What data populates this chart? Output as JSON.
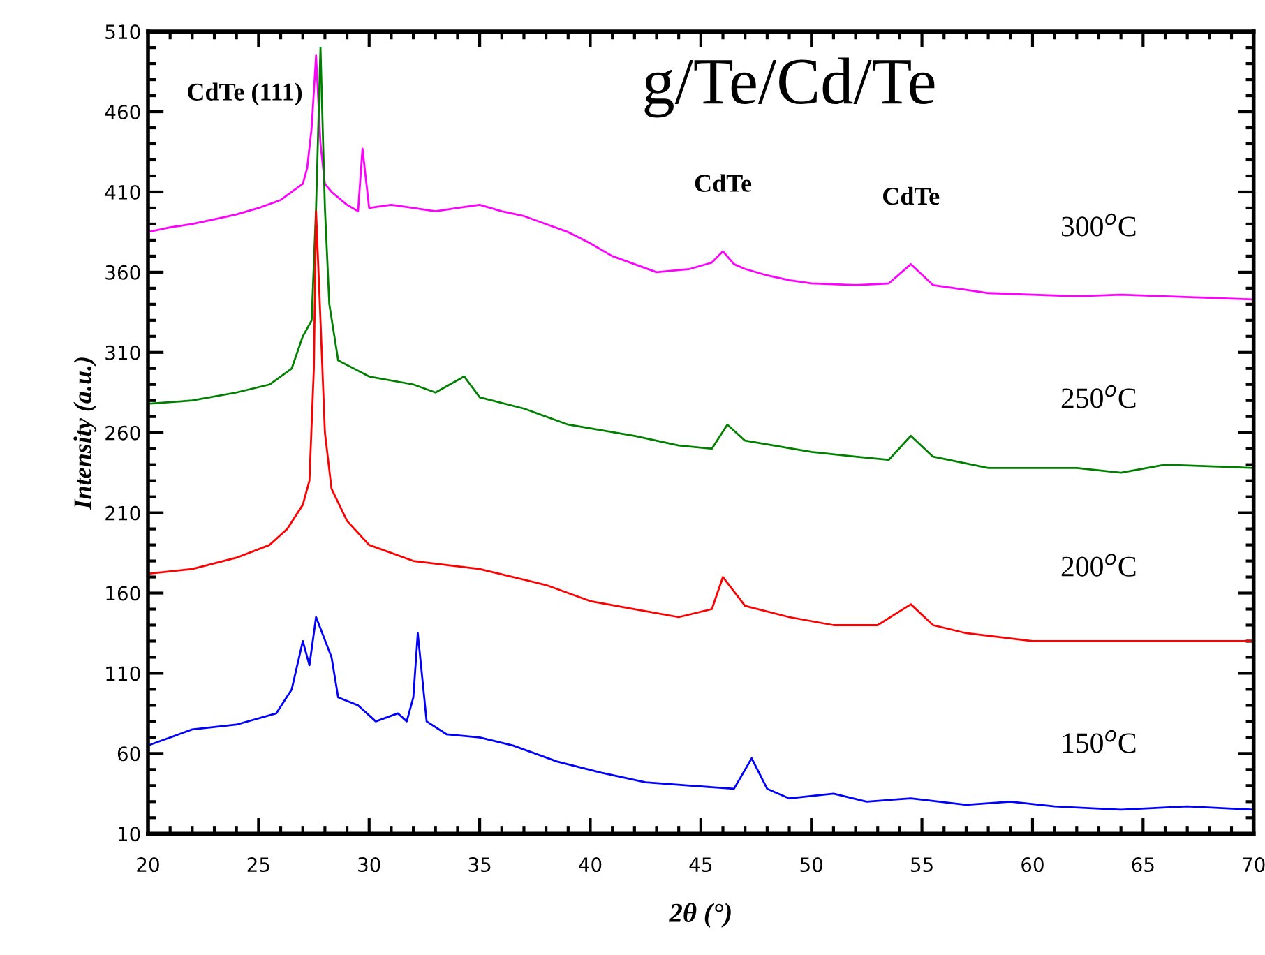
{
  "chart_data": {
    "type": "line",
    "title": "g/Te/Cd/Te",
    "xlabel": "2θ (°)",
    "ylabel": "Intensity (a.u.)",
    "xlim": [
      20,
      70
    ],
    "xticks": [
      20,
      25,
      30,
      35,
      40,
      45,
      50,
      55,
      60,
      65,
      70
    ],
    "ylim": [
      10,
      510
    ],
    "yticks": [
      10,
      60,
      110,
      160,
      210,
      260,
      310,
      360,
      410,
      460,
      510
    ],
    "grid": false,
    "legend": false,
    "marker": "none",
    "line_style": "solid",
    "annotations": [
      {
        "text": "CdTe (111)",
        "x": 27.7,
        "y": 495
      },
      {
        "text": "CdTe",
        "x": 46,
        "y": 373
      },
      {
        "text": "CdTe",
        "x": 54.5,
        "y": 365
      }
    ],
    "series": [
      {
        "name": "300$^{o}$C",
        "color": "#ff00ff",
        "x": [
          20,
          21,
          22,
          23,
          24,
          25,
          26,
          26.5,
          27,
          27.2,
          27.4,
          27.6,
          27.8,
          28,
          28.3,
          29,
          29.5,
          29.7,
          30,
          31,
          32,
          33,
          34,
          35,
          36,
          37,
          38,
          39,
          40,
          41,
          42,
          43,
          44.5,
          45.5,
          46,
          46.5,
          47,
          48,
          49,
          50,
          52,
          53.5,
          54.5,
          55.5,
          57,
          58,
          60,
          62,
          64,
          66,
          68,
          70
        ],
        "values": [
          385,
          388,
          390,
          393,
          396,
          400,
          405,
          410,
          415,
          425,
          450,
          495,
          440,
          415,
          410,
          402,
          398,
          437,
          400,
          402,
          400,
          398,
          400,
          402,
          398,
          395,
          390,
          385,
          378,
          370,
          365,
          360,
          362,
          366,
          373,
          365,
          362,
          358,
          355,
          353,
          352,
          353,
          365,
          352,
          349,
          347,
          346,
          345,
          346,
          345,
          344,
          343
        ]
      },
      {
        "name": "250$^{o}$C",
        "color": "#008000",
        "x": [
          20,
          22,
          24,
          25.5,
          26.5,
          27,
          27.4,
          27.6,
          27.8,
          28,
          28.2,
          28.6,
          30,
          32,
          33,
          34.3,
          35,
          37,
          39,
          42,
          44,
          45.5,
          46.2,
          47,
          50,
          52,
          53.5,
          54.5,
          55.5,
          58,
          62,
          64,
          66,
          70
        ],
        "values": [
          278,
          280,
          285,
          290,
          300,
          320,
          330,
          400,
          500,
          400,
          340,
          305,
          295,
          290,
          285,
          295,
          282,
          275,
          265,
          258,
          252,
          250,
          265,
          255,
          248,
          245,
          243,
          258,
          245,
          238,
          238,
          235,
          240,
          238
        ]
      },
      {
        "name": "200$^{o}$C",
        "color": "#ff0000",
        "x": [
          20,
          22,
          24,
          25.5,
          26.3,
          27,
          27.3,
          27.5,
          27.6,
          27.8,
          28,
          28.3,
          29,
          30,
          32,
          35,
          38,
          40,
          42,
          44,
          45.5,
          46,
          47,
          49,
          51,
          53,
          54.5,
          55.5,
          57,
          60,
          65,
          70
        ],
        "values": [
          172,
          175,
          182,
          190,
          200,
          215,
          230,
          300,
          398,
          330,
          260,
          225,
          205,
          190,
          180,
          175,
          165,
          155,
          150,
          145,
          150,
          170,
          152,
          145,
          140,
          140,
          153,
          140,
          135,
          130,
          130,
          130
        ]
      },
      {
        "name": "150$^{o}$C",
        "color": "#0000ff",
        "x": [
          20,
          22,
          24,
          25.8,
          26.5,
          27,
          27.3,
          27.6,
          28.3,
          28.6,
          29.5,
          30.3,
          31.3,
          31.7,
          32,
          32.2,
          32.6,
          33.5,
          35,
          36.5,
          38.5,
          40.5,
          42.5,
          44.5,
          46.5,
          47.3,
          48,
          49,
          51,
          52.5,
          54.5,
          57,
          59,
          61,
          64,
          67,
          70
        ],
        "values": [
          65,
          75,
          78,
          85,
          100,
          130,
          115,
          145,
          120,
          95,
          90,
          80,
          85,
          80,
          95,
          135,
          80,
          72,
          70,
          65,
          55,
          48,
          42,
          40,
          38,
          57,
          38,
          32,
          35,
          30,
          32,
          28,
          30,
          27,
          25,
          27,
          25
        ]
      }
    ]
  }
}
